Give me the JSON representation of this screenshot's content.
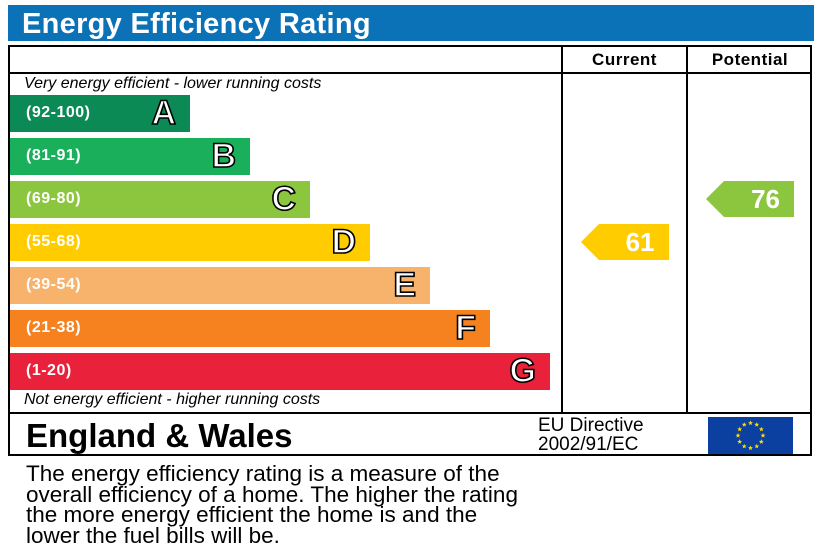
{
  "title": "Energy Efficiency Rating",
  "columns": {
    "current": "Current",
    "potential": "Potential"
  },
  "top_caption": "Very energy efficient - lower running costs",
  "bottom_caption": "Not energy efficient - higher running costs",
  "chart_data": {
    "type": "bar",
    "title": "Energy Efficiency Rating",
    "categories": [
      "A",
      "B",
      "C",
      "D",
      "E",
      "F",
      "G"
    ],
    "bands": [
      {
        "letter": "A",
        "range": "(92-100)",
        "color": "#0b8a55"
      },
      {
        "letter": "B",
        "range": "(81-91)",
        "color": "#1aaf5a"
      },
      {
        "letter": "C",
        "range": "(69-80)",
        "color": "#8cc63f"
      },
      {
        "letter": "D",
        "range": "(55-68)",
        "color": "#ffcc00"
      },
      {
        "letter": "E",
        "range": "(39-54)",
        "color": "#f7b26c"
      },
      {
        "letter": "F",
        "range": "(21-38)",
        "color": "#f5821f"
      },
      {
        "letter": "G",
        "range": "(1-20)",
        "color": "#e9213a"
      }
    ],
    "current": {
      "value": 61,
      "band": "D",
      "color": "#ffcc00"
    },
    "potential": {
      "value": 76,
      "band": "C",
      "color": "#8cc63f"
    }
  },
  "footer": {
    "country": "England & Wales",
    "directive_line1": "EU Directive",
    "directive_line2": "2002/91/EC",
    "flag_colors": {
      "field": "#0b3fa0",
      "stars": "#ffdd00"
    }
  },
  "description": {
    "line1": "The energy efficiency rating is a measure of the",
    "line2": "overall efficiency of a home. The higher the rating",
    "line3": "the more energy efficient the home is and the",
    "line4": "lower the fuel bills will be."
  }
}
